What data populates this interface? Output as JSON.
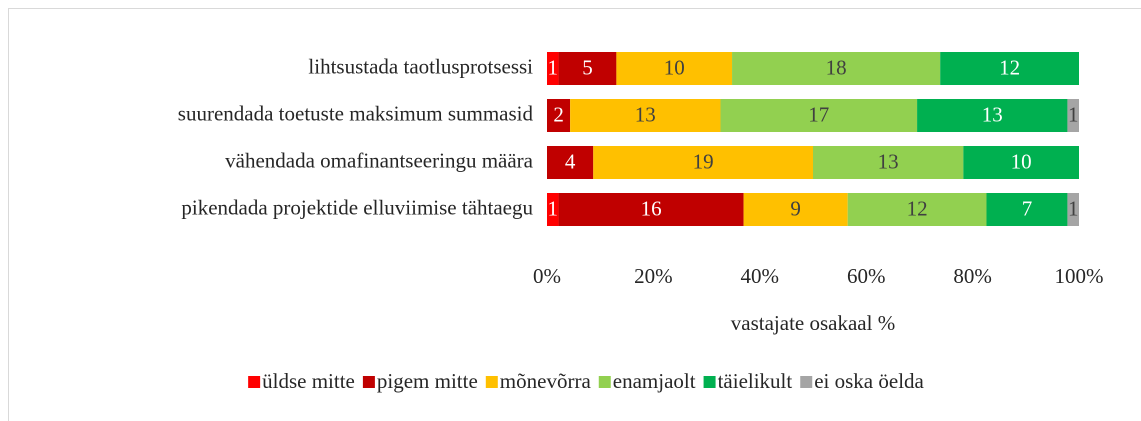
{
  "chart_data": {
    "type": "bar",
    "orientation": "horizontal",
    "stacked_percent": true,
    "xlabel": "vastajate osakaal %",
    "categories": [
      "lihtsustada taotlusprotsessi",
      "suurendada toetuste maksimum summasid",
      "vähendada omafinantseeringu määra",
      "pikendada projektide elluviimise tähtaegu"
    ],
    "series": [
      {
        "name": "üldse mitte",
        "color": "#ff0000",
        "label_color": "#ffffff",
        "values": [
          1,
          0,
          0,
          1
        ]
      },
      {
        "name": "pigem mitte",
        "color": "#c00000",
        "label_color": "#ffffff",
        "values": [
          5,
          2,
          4,
          16
        ]
      },
      {
        "name": "mõnevõrra",
        "color": "#ffc000",
        "label_color": "#404040",
        "values": [
          10,
          13,
          19,
          9
        ]
      },
      {
        "name": "enamjaolt",
        "color": "#92d050",
        "label_color": "#404040",
        "values": [
          18,
          17,
          13,
          12
        ]
      },
      {
        "name": "täielikult",
        "color": "#00b050",
        "label_color": "#ffffff",
        "values": [
          12,
          13,
          10,
          7
        ]
      },
      {
        "name": "ei oska öelda",
        "color": "#a5a5a5",
        "label_color": "#404040",
        "values": [
          0,
          1,
          0,
          1
        ]
      }
    ],
    "xlim": [
      0,
      100
    ],
    "xticks": [
      {
        "value": 0,
        "label": "0%"
      },
      {
        "value": 20,
        "label": "20%"
      },
      {
        "value": 40,
        "label": "40%"
      },
      {
        "value": 60,
        "label": "60%"
      },
      {
        "value": 80,
        "label": "80%"
      },
      {
        "value": 100,
        "label": "100%"
      }
    ],
    "legend": "bottom"
  }
}
